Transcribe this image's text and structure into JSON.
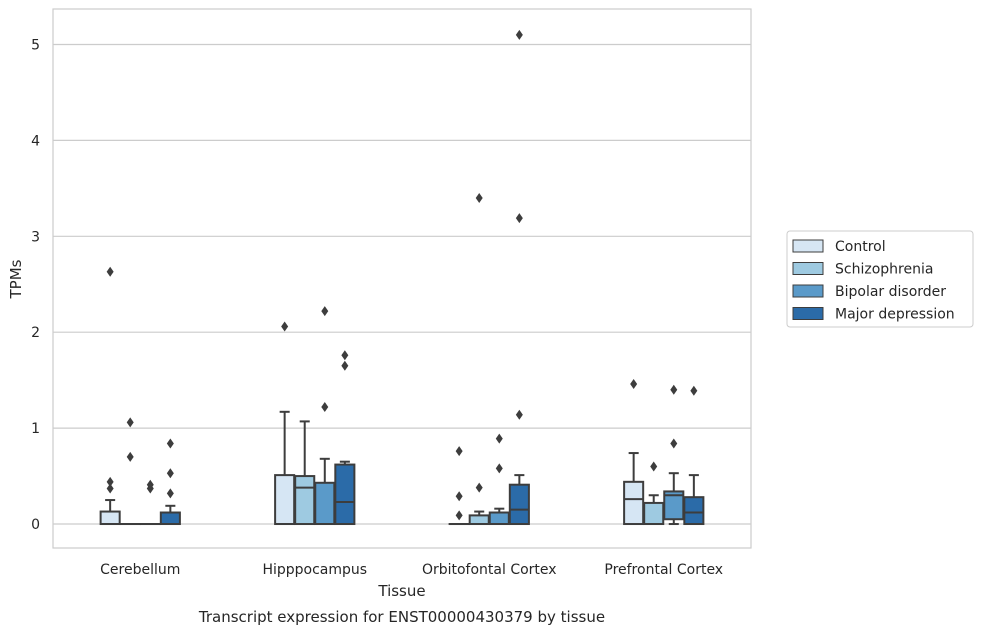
{
  "caption": "Transcript expression for ENST00000430379 by tissue",
  "chart_data": {
    "type": "box",
    "xlabel": "Tissue",
    "ylabel": "TPMs",
    "ylim": [
      -0.25,
      5.37
    ],
    "yticks": [
      0,
      1,
      2,
      3,
      4,
      5
    ],
    "grid": "y",
    "legend_position": "right",
    "categories": [
      "Cerebellum",
      "Hipppocampus",
      "Orbitofontal Cortex",
      "Prefrontal Cortex"
    ],
    "series": [
      {
        "name": "Control",
        "color": "#d6e6f4",
        "boxes": [
          {
            "min": 0,
            "q1": 0,
            "median": 0,
            "q3": 0.13,
            "max": 0.25,
            "outliers": [
              0.37,
              0.44,
              2.63
            ]
          },
          {
            "min": 0,
            "q1": 0,
            "median": 0,
            "q3": 0.51,
            "max": 1.17,
            "outliers": [
              2.06
            ]
          },
          {
            "min": 0,
            "q1": 0,
            "median": 0,
            "q3": 0,
            "max": 0,
            "outliers": [
              0.09,
              0.29,
              0.76
            ]
          },
          {
            "min": 0,
            "q1": 0,
            "median": 0.26,
            "q3": 0.44,
            "max": 0.74,
            "outliers": [
              1.46
            ]
          }
        ]
      },
      {
        "name": "Schizophrenia",
        "color": "#9ecae1",
        "boxes": [
          {
            "min": 0,
            "q1": 0,
            "median": 0,
            "q3": 0,
            "max": 0,
            "outliers": [
              0.7,
              1.06
            ]
          },
          {
            "min": 0,
            "q1": 0,
            "median": 0.38,
            "q3": 0.5,
            "max": 1.07,
            "outliers": []
          },
          {
            "min": 0,
            "q1": 0,
            "median": 0,
            "q3": 0.09,
            "max": 0.13,
            "outliers": [
              0.38,
              3.4
            ]
          },
          {
            "min": 0,
            "q1": 0,
            "median": 0,
            "q3": 0.22,
            "max": 0.3,
            "outliers": [
              0.6
            ]
          }
        ]
      },
      {
        "name": "Bipolar disorder",
        "color": "#5a9ac9",
        "boxes": [
          {
            "min": 0,
            "q1": 0,
            "median": 0,
            "q3": 0,
            "max": 0,
            "outliers": [
              0.37,
              0.41
            ]
          },
          {
            "min": 0,
            "q1": 0,
            "median": 0,
            "q3": 0.43,
            "max": 0.68,
            "outliers": [
              1.22,
              2.22
            ]
          },
          {
            "min": 0,
            "q1": 0,
            "median": 0,
            "q3": 0.12,
            "max": 0.16,
            "outliers": [
              0.58,
              0.89
            ]
          },
          {
            "min": 0,
            "q1": 0.05,
            "median": 0.3,
            "q3": 0.34,
            "max": 0.53,
            "outliers": [
              0.84,
              1.4
            ]
          }
        ]
      },
      {
        "name": "Major depression",
        "color": "#2b6ba8",
        "boxes": [
          {
            "min": 0,
            "q1": 0,
            "median": 0,
            "q3": 0.12,
            "max": 0.19,
            "outliers": [
              0.32,
              0.53,
              0.84
            ]
          },
          {
            "min": 0,
            "q1": 0,
            "median": 0.23,
            "q3": 0.62,
            "max": 0.65,
            "outliers": [
              1.65,
              1.76
            ]
          },
          {
            "min": 0,
            "q1": 0,
            "median": 0.15,
            "q3": 0.41,
            "max": 0.51,
            "outliers": [
              1.14,
              3.19,
              5.1
            ]
          },
          {
            "min": 0,
            "q1": 0,
            "median": 0.12,
            "q3": 0.28,
            "max": 0.51,
            "outliers": [
              1.39
            ]
          }
        ]
      }
    ]
  }
}
